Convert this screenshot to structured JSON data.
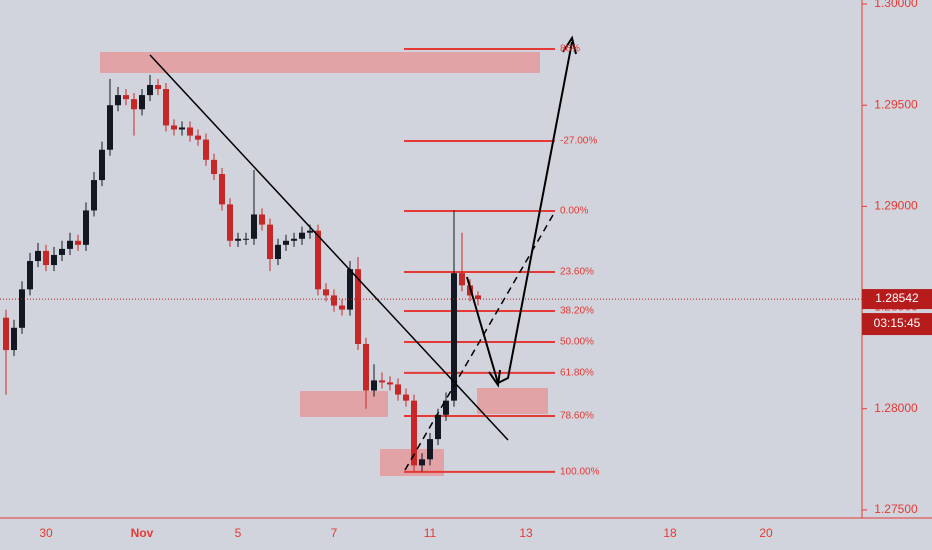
{
  "chart_data": {
    "type": "candlestick",
    "categories": [
      null,
      null,
      null,
      null,
      null,
      "30",
      null,
      null,
      null,
      null,
      null,
      null,
      null,
      null,
      null,
      null,
      null,
      "Nov",
      null,
      null,
      null,
      null,
      null,
      null,
      null,
      null,
      null,
      null,
      null,
      "5",
      null,
      null,
      null,
      null,
      null,
      null,
      null,
      null,
      null,
      null,
      null,
      "7",
      null,
      null,
      null,
      null,
      null,
      null,
      null,
      null,
      null,
      null,
      null,
      "11",
      null,
      null,
      null,
      null,
      null,
      null,
      null,
      null,
      null,
      null,
      null,
      "13",
      null,
      null,
      null,
      null,
      null,
      null,
      null,
      null,
      null,
      null,
      null,
      null,
      null,
      null,
      null,
      null,
      null,
      "18",
      null,
      null,
      null,
      null,
      null,
      null,
      null,
      null,
      null,
      null,
      null,
      "20",
      null,
      null,
      null,
      null
    ],
    "open": [
      1.2845,
      1.2829,
      1.284,
      1.2859,
      1.2873,
      1.2878,
      1.2871,
      1.2876,
      1.2879,
      1.2883,
      1.2881,
      1.2898,
      1.2913,
      1.2928,
      1.295,
      1.2955,
      1.2953,
      1.2948,
      1.2955,
      1.296,
      1.2958,
      1.294,
      1.2938,
      1.2939,
      1.2935,
      1.2933,
      1.2923,
      1.2916,
      1.2901,
      1.2883,
      1.2884,
      1.2884,
      1.2896,
      1.2891,
      1.2874,
      1.2881,
      1.2883,
      1.2884,
      1.2887,
      1.2888,
      1.2859,
      1.2856,
      1.2851,
      1.2849,
      1.2869,
      1.2832,
      1.2809,
      1.2814,
      1.2813,
      1.2812,
      1.2807,
      1.2804,
      1.2772,
      1.2775,
      1.2785,
      1.2797,
      1.2804,
      1.2867,
      1.2861,
      1.2856,
      null,
      null,
      null,
      null,
      null,
      null,
      null,
      null,
      null,
      null,
      null,
      null,
      null,
      null,
      null,
      null,
      null,
      null,
      null,
      null,
      null,
      null,
      null,
      null,
      null,
      null,
      null,
      null,
      null,
      null,
      null,
      null,
      null,
      null,
      null,
      null,
      null,
      null,
      null,
      null
    ],
    "high": [
      1.2849,
      1.2844,
      1.2863,
      1.2877,
      1.2882,
      1.2881,
      1.288,
      1.2883,
      1.2887,
      1.2886,
      1.2902,
      1.2917,
      1.2932,
      1.2963,
      1.2959,
      1.2958,
      1.2956,
      1.2958,
      1.2965,
      1.2963,
      1.2961,
      1.2943,
      1.2942,
      1.2942,
      1.2938,
      1.2936,
      1.2926,
      1.2919,
      1.2904,
      1.2887,
      1.2887,
      1.2918,
      1.2899,
      1.2894,
      1.2884,
      1.2886,
      1.2887,
      1.289,
      1.2891,
      1.2891,
      1.2862,
      1.2859,
      1.2854,
      1.2873,
      1.2875,
      1.2835,
      1.2822,
      1.2818,
      1.2816,
      1.2815,
      1.281,
      1.2807,
      1.2778,
      1.2788,
      1.28,
      1.2808,
      1.2898,
      1.2887,
      1.2864,
      1.2858,
      null,
      null,
      null,
      null,
      null,
      null,
      null,
      null,
      null,
      null,
      null,
      null,
      null,
      null,
      null,
      null,
      null,
      null,
      null,
      null,
      null,
      null,
      null,
      null,
      null,
      null,
      null,
      null,
      null,
      null,
      null,
      null,
      null,
      null,
      null,
      null,
      null,
      null,
      null,
      null
    ],
    "low": [
      1.2807,
      1.2826,
      1.2837,
      1.2856,
      1.287,
      1.2868,
      1.2868,
      1.2873,
      1.2876,
      1.2878,
      1.2878,
      1.2895,
      1.291,
      1.2925,
      1.2947,
      1.295,
      1.2935,
      1.2945,
      1.2952,
      1.2955,
      1.2937,
      1.2935,
      1.2935,
      1.2932,
      1.293,
      1.292,
      1.2913,
      1.2898,
      1.288,
      1.288,
      1.2881,
      1.2881,
      1.2888,
      1.2868,
      1.2871,
      1.2878,
      1.288,
      1.2881,
      1.2884,
      1.2856,
      1.2853,
      1.2848,
      1.2846,
      1.2846,
      1.2829,
      1.28,
      1.2806,
      1.281,
      1.2809,
      1.2804,
      1.2801,
      1.2769,
      1.2769,
      1.2772,
      1.2782,
      1.2794,
      1.2801,
      1.2858,
      1.2853,
      1.2851,
      null,
      null,
      null,
      null,
      null,
      null,
      null,
      null,
      null,
      null,
      null,
      null,
      null,
      null,
      null,
      null,
      null,
      null,
      null,
      null,
      null,
      null,
      null,
      null,
      null,
      null,
      null,
      null,
      null,
      null,
      null,
      null,
      null,
      null,
      null,
      null,
      null,
      null,
      null,
      null
    ],
    "close": [
      1.2829,
      1.284,
      1.2859,
      1.2873,
      1.2878,
      1.2871,
      1.2876,
      1.2879,
      1.2883,
      1.2881,
      1.2898,
      1.2913,
      1.2928,
      1.295,
      1.2955,
      1.2953,
      1.2948,
      1.2955,
      1.296,
      1.2958,
      1.294,
      1.2938,
      1.2939,
      1.2935,
      1.2933,
      1.2923,
      1.2916,
      1.2901,
      1.2883,
      1.2884,
      1.2884,
      1.2896,
      1.2891,
      1.2874,
      1.2881,
      1.2883,
      1.2884,
      1.2887,
      1.2888,
      1.2859,
      1.2856,
      1.2851,
      1.2849,
      1.2869,
      1.2832,
      1.2809,
      1.2814,
      1.2813,
      1.2812,
      1.2807,
      1.2804,
      1.2772,
      1.2775,
      1.2785,
      1.2797,
      1.2804,
      1.2867,
      1.2861,
      1.2856,
      1.28542,
      null,
      null,
      null,
      null,
      null,
      null,
      null,
      null,
      null,
      null,
      null,
      null,
      null,
      null,
      null,
      null,
      null,
      null,
      null,
      null,
      null,
      null,
      null,
      null,
      null,
      null,
      null,
      null,
      null,
      null,
      null,
      null,
      null,
      null,
      null,
      null,
      null,
      null,
      null,
      null
    ],
    "up_color": "#131722",
    "down_color": "#c62828",
    "ylim": [
      1.2746,
      1.3002
    ],
    "yticks": [
      {
        "value": 1.275,
        "label": "1.27500"
      },
      {
        "value": 1.28,
        "label": "1.28000"
      },
      {
        "value": 1.285,
        "label": "1.28500"
      },
      {
        "value": 1.29,
        "label": "1.29000"
      },
      {
        "value": 1.295,
        "label": "1.29500"
      },
      {
        "value": 1.3,
        "label": "1.30000"
      }
    ],
    "countdown": "03:15:45",
    "fib_levels": [
      {
        "label": "86%",
        "price": 1.29778
      },
      {
        "label": "-27.00%",
        "price": 1.29323
      },
      {
        "label": "0.00%",
        "price": 1.28977
      },
      {
        "label": "23.60%",
        "price": 1.28676
      },
      {
        "label": "38.20%",
        "price": 1.28483
      },
      {
        "label": "50.00%",
        "price": 1.2833
      },
      {
        "label": "61.80%",
        "price": 1.28177
      },
      {
        "label": "78.60%",
        "price": 1.27964
      },
      {
        "label": "100.00%",
        "price": 1.27688
      }
    ],
    "fib_color": "#e53935"
  }
}
